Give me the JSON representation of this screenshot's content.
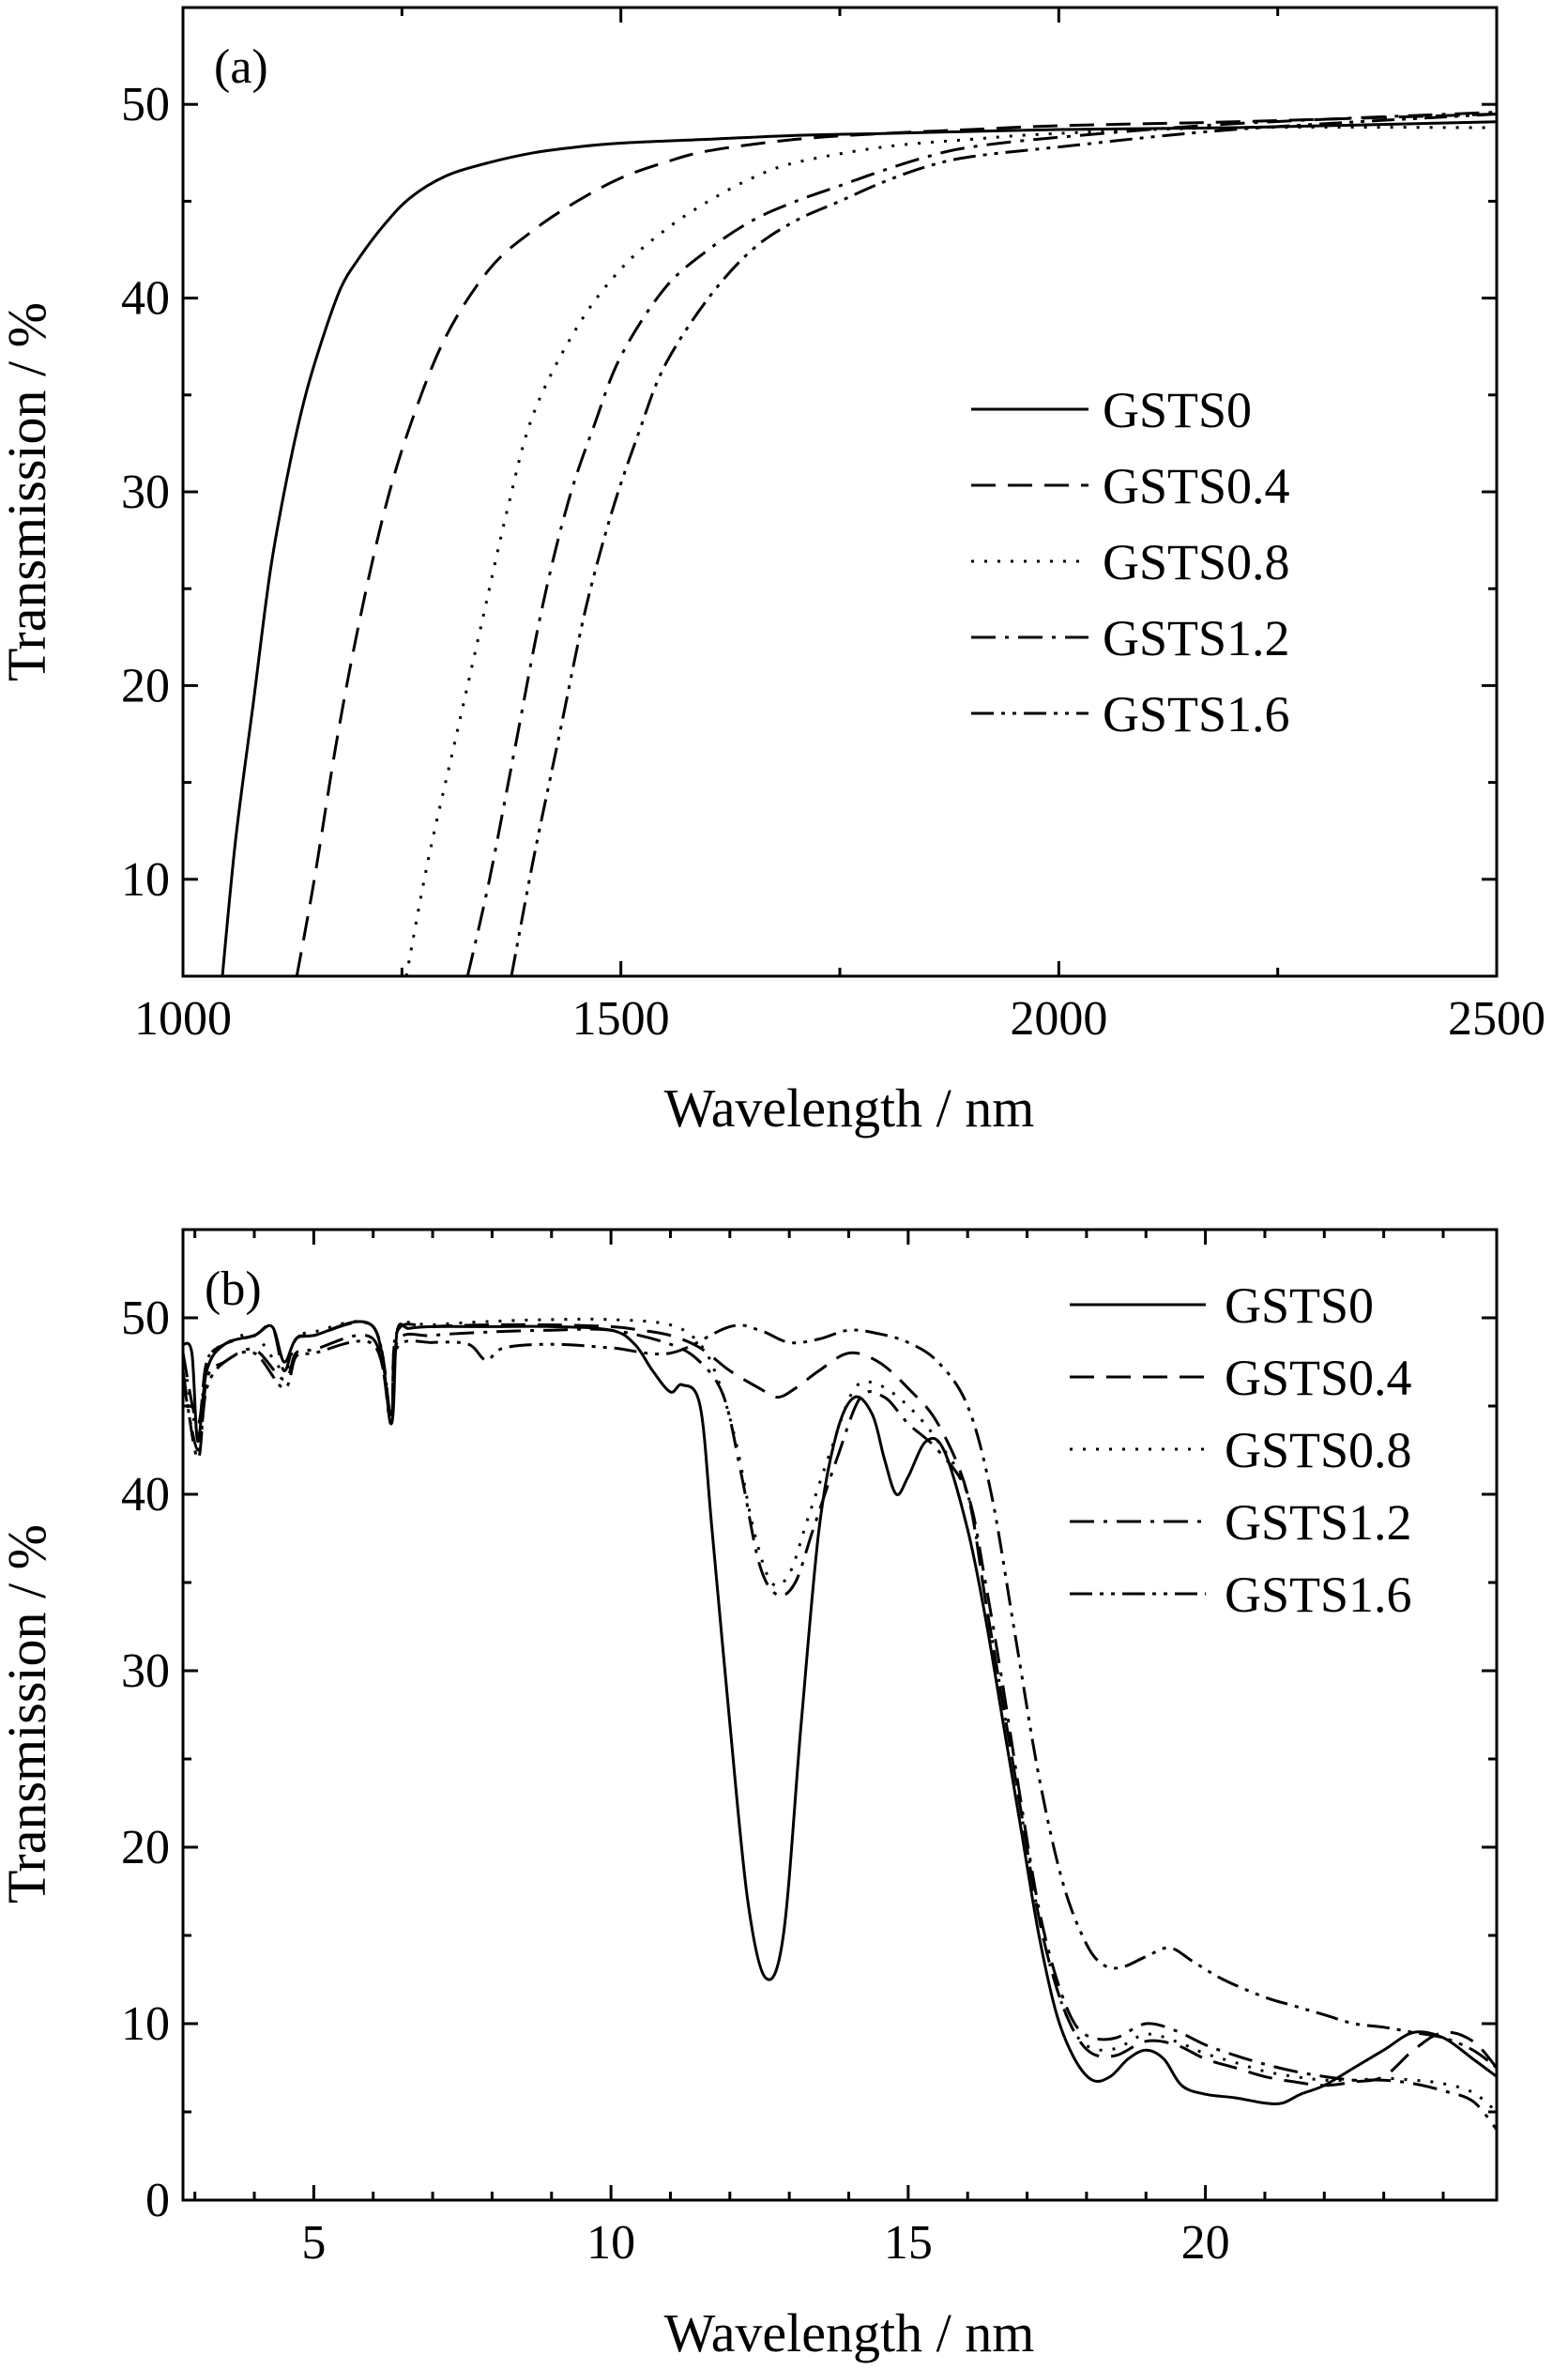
{
  "chart_data": [
    {
      "type": "line",
      "panel_label": "(a)",
      "xlabel": "Wavelength / nm",
      "ylabel": "Transmission / %",
      "xlim": [
        1000,
        2500
      ],
      "ylim": [
        5,
        55
      ],
      "x_ticks": [
        "1000",
        "1500",
        "2000",
        "2500"
      ],
      "y_ticks": [
        "10",
        "20",
        "30",
        "40",
        "50"
      ],
      "x_tick_values": [
        1000,
        1500,
        2000,
        2500
      ],
      "y_tick_values": [
        10,
        20,
        30,
        40,
        50
      ],
      "x_minor_step": 250,
      "y_minor_step": 5,
      "legend_position": "center-right",
      "series": [
        {
          "name": "GSTS0",
          "dash": "solid",
          "x": [
            1045,
            1060,
            1080,
            1100,
            1120,
            1140,
            1160,
            1180,
            1200,
            1230,
            1260,
            1300,
            1350,
            1400,
            1450,
            1500,
            1600,
            1700,
            1800,
            2000,
            2200,
            2500
          ],
          "y": [
            5,
            12,
            19,
            26,
            31,
            35,
            38,
            40.5,
            42,
            43.8,
            45.2,
            46.3,
            47,
            47.5,
            47.8,
            48,
            48.2,
            48.4,
            48.5,
            48.7,
            48.8,
            49.1
          ]
        },
        {
          "name": "GSTS0.4",
          "dash": "dashed",
          "x": [
            1130,
            1150,
            1175,
            1200,
            1230,
            1260,
            1300,
            1350,
            1400,
            1450,
            1500,
            1550,
            1600,
            1700,
            1800,
            1900,
            2000,
            2200,
            2500
          ],
          "y": [
            5,
            10,
            17,
            23,
            29,
            33.5,
            38,
            41.5,
            43.5,
            45,
            46.2,
            47,
            47.6,
            48.2,
            48.5,
            48.7,
            48.9,
            49.1,
            49.5
          ]
        },
        {
          "name": "GSTS0.8",
          "dash": "dotted",
          "x": [
            1255,
            1280,
            1310,
            1340,
            1370,
            1400,
            1450,
            1500,
            1550,
            1600,
            1650,
            1700,
            1800,
            1900,
            2000,
            2200,
            2500
          ],
          "y": [
            5,
            11,
            17,
            23,
            29,
            34,
            38.5,
            41.5,
            43.5,
            45,
            46.2,
            47,
            47.8,
            48.2,
            48.5,
            48.8,
            48.8
          ]
        },
        {
          "name": "GSTS1.2",
          "dash": "dash-dot",
          "x": [
            1325,
            1350,
            1380,
            1410,
            1440,
            1470,
            1500,
            1550,
            1600,
            1650,
            1700,
            1750,
            1800,
            1850,
            1900,
            2000,
            2200,
            2500
          ],
          "y": [
            5,
            10,
            17,
            24,
            29.5,
            33.5,
            37,
            40.5,
            42.5,
            44,
            45,
            45.8,
            46.6,
            47.3,
            47.8,
            48.3,
            49,
            49.6
          ]
        },
        {
          "name": "GSTS1.6",
          "dash": "dash-dot-dot",
          "x": [
            1375,
            1400,
            1430,
            1460,
            1490,
            1520,
            1550,
            1600,
            1650,
            1700,
            1750,
            1800,
            1850,
            1900,
            2000,
            2200,
            2500
          ],
          "y": [
            5,
            11,
            17.5,
            24,
            29,
            33,
            36.5,
            40,
            42.5,
            44,
            45,
            46,
            46.8,
            47.3,
            47.8,
            48.7,
            49.5
          ]
        }
      ]
    },
    {
      "type": "line",
      "panel_label": "(b)",
      "xlabel": "Wavelength / nm",
      "ylabel": "Transmission / %",
      "xlim": [
        2.8,
        24.9
      ],
      "ylim": [
        0,
        55
      ],
      "x_ticks": [
        "5",
        "10",
        "15",
        "20"
      ],
      "y_ticks": [
        "0",
        "10",
        "20",
        "30",
        "40",
        "50"
      ],
      "x_tick_values": [
        5,
        10,
        15,
        20
      ],
      "y_tick_values": [
        0,
        10,
        20,
        30,
        40,
        50
      ],
      "x_minor_step": 1,
      "y_minor_step": 5,
      "legend_position": "top-right",
      "series": [
        {
          "name": "GSTS0",
          "dash": "solid",
          "x": [
            2.8,
            2.95,
            3.05,
            3.2,
            3.5,
            4,
            4.3,
            4.5,
            4.7,
            5,
            6,
            6.3,
            6.4,
            6.6,
            7,
            8,
            9,
            10,
            10.4,
            10.7,
            11,
            11.2,
            11.5,
            11.7,
            12,
            12.3,
            12.6,
            12.9,
            13.2,
            13.5,
            13.8,
            14.1,
            14.4,
            14.6,
            14.8,
            15,
            15.3,
            15.6,
            16,
            16.3,
            16.6,
            16.9,
            17.2,
            17.5,
            17.8,
            18.1,
            18.4,
            18.7,
            19,
            19.3,
            19.6,
            20,
            20.5,
            21,
            21.3,
            21.6,
            22,
            22.5,
            23,
            23.5,
            24,
            24.5,
            24.9
          ],
          "y": [
            48.5,
            48,
            43,
            47,
            48.5,
            49,
            49.5,
            47.5,
            48.8,
            49,
            49.5,
            44,
            49.2,
            49.4,
            49.5,
            49.5,
            49.5,
            49.3,
            48.5,
            47,
            45.8,
            46.2,
            45,
            38,
            27,
            17,
            12.6,
            15,
            27,
            38,
            43.5,
            45.5,
            44.5,
            42,
            40,
            41,
            43,
            42.5,
            38,
            33,
            27,
            21,
            15,
            10.5,
            8,
            6.8,
            7,
            8,
            8.5,
            8,
            6.5,
            6,
            5.8,
            5.5,
            5.5,
            6,
            6.5,
            7.5,
            8.5,
            9.5,
            9.2,
            8,
            7
          ]
        },
        {
          "name": "GSTS0.4",
          "dash": "dashed",
          "x": [
            2.8,
            3.05,
            3.2,
            3.5,
            4,
            4.3,
            4.5,
            4.7,
            5,
            6,
            6.3,
            6.4,
            7,
            8,
            9,
            10,
            10.5,
            11,
            11.5,
            12,
            12.5,
            12.8,
            13.1,
            13.5,
            14,
            14.5,
            15,
            15.5,
            16,
            16.3,
            16.6,
            16.9,
            17.2,
            17.5,
            17.8,
            18.1,
            18.5,
            19,
            19.5,
            20,
            20.5,
            21,
            21.5,
            22,
            22.5,
            23,
            23.5,
            24,
            24.5,
            24.9
          ],
          "y": [
            48,
            44,
            47.5,
            48.5,
            49,
            49.5,
            47,
            48.8,
            49,
            49.5,
            44.5,
            49.2,
            49.5,
            49.6,
            49.6,
            49.5,
            49.3,
            49,
            48.3,
            47,
            46,
            45.5,
            46,
            47,
            48,
            47.5,
            46,
            44,
            40,
            34,
            28,
            22,
            16,
            12,
            9.5,
            8.3,
            8.2,
            9,
            8.8,
            8,
            7.5,
            7,
            6.7,
            6.5,
            6.7,
            7,
            8.5,
            9.5,
            9,
            7.5
          ]
        },
        {
          "name": "GSTS0.8",
          "dash": "dotted",
          "x": [
            2.8,
            3.05,
            3.2,
            3.5,
            4,
            4.5,
            4.7,
            5,
            6,
            6.3,
            6.4,
            7,
            8,
            9,
            10,
            11,
            11.5,
            11.8,
            12.1,
            12.4,
            12.7,
            13,
            13.3,
            13.7,
            14.1,
            14.5,
            15,
            15.5,
            16,
            16.3,
            16.6,
            16.9,
            17.2,
            17.5,
            17.8,
            18.1,
            18.5,
            19,
            19.5,
            20,
            20.5,
            21,
            21.5,
            22,
            22.5,
            23,
            23.5,
            24,
            24.5,
            24.9
          ],
          "y": [
            48,
            43.5,
            47.5,
            48.5,
            49,
            47,
            48.8,
            49.2,
            49.5,
            44.5,
            49.3,
            49.6,
            49.8,
            49.9,
            49.9,
            49.6,
            48.5,
            46.5,
            43,
            38,
            35,
            35.5,
            38.5,
            42.5,
            46,
            46.2,
            45,
            43,
            40,
            34,
            28,
            22,
            16,
            12,
            9.5,
            8.6,
            8.6,
            9.4,
            9,
            8.3,
            7.8,
            7.3,
            7,
            6.8,
            6.8,
            6.9,
            6.8,
            6.6,
            6.1,
            5
          ]
        },
        {
          "name": "GSTS1.2",
          "dash": "dash-dot",
          "x": [
            2.8,
            3.05,
            3.2,
            3.5,
            4,
            4.5,
            4.7,
            5,
            6,
            6.3,
            6.4,
            7,
            8,
            9,
            10,
            11,
            11.5,
            11.9,
            12.2,
            12.5,
            12.8,
            13.1,
            13.4,
            13.8,
            14.2,
            14.6,
            15,
            15.5,
            16,
            16.3,
            16.6,
            16.9,
            17.2,
            17.5,
            17.8,
            18.1,
            18.5,
            19,
            19.5,
            20,
            20.5,
            21,
            21.5,
            22,
            22.5,
            23,
            23.5,
            24,
            24.5,
            24.9
          ],
          "y": [
            47,
            42,
            46.5,
            47.5,
            48.2,
            46.5,
            48,
            48.2,
            48.8,
            44,
            48.6,
            49,
            49.2,
            49.3,
            49.3,
            48.5,
            47.5,
            45.5,
            41,
            36,
            34.3,
            35,
            38,
            42,
            45.5,
            45.5,
            44,
            42.5,
            40,
            35,
            29,
            22.5,
            16.5,
            12.5,
            10,
            9.2,
            9.2,
            10,
            9.6,
            8.8,
            8.2,
            7.7,
            7.3,
            7,
            6.8,
            6.8,
            6.6,
            6.2,
            5.6,
            4
          ]
        },
        {
          "name": "GSTS1.6",
          "dash": "dash-dot-dot",
          "x": [
            2.8,
            3.05,
            3.2,
            3.5,
            4,
            4.5,
            4.7,
            5,
            6,
            6.3,
            6.4,
            7,
            7.6,
            7.9,
            8.2,
            9,
            10,
            11,
            12,
            12.5,
            13,
            13.5,
            14,
            14.5,
            15,
            15.5,
            16,
            16.4,
            16.8,
            17.2,
            17.6,
            18,
            18.3,
            18.6,
            19,
            19.4,
            19.8,
            20.3,
            21,
            21.5,
            22,
            22.5,
            23,
            23.5,
            24,
            24.5,
            24.9
          ],
          "y": [
            46.5,
            42.5,
            46,
            47.5,
            48,
            46,
            47.8,
            48,
            48.5,
            44.5,
            48.3,
            48.6,
            48.5,
            47.6,
            48.3,
            48.5,
            48.3,
            48,
            49.5,
            49.3,
            48.6,
            48.8,
            49.3,
            49.1,
            48.6,
            47.5,
            45,
            40,
            32,
            24,
            18,
            14.5,
            13.3,
            13.2,
            13.8,
            14.3,
            13.5,
            12.5,
            11.5,
            11,
            10.5,
            10,
            9.8,
            9.5,
            9.2,
            8.5,
            7.5
          ]
        }
      ]
    }
  ]
}
